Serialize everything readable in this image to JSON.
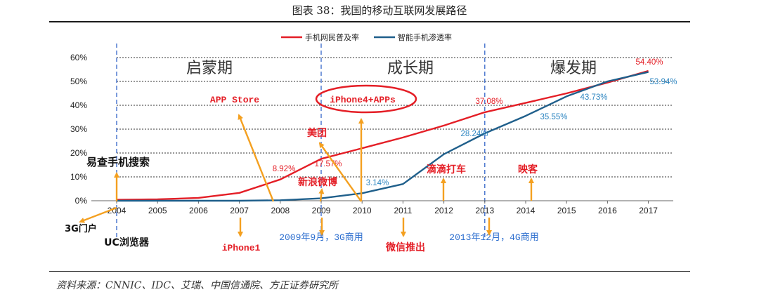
{
  "figure_title": "图表 38：我国的移动互联网发展路径",
  "source": "资料来源：CNNIC、IDC、艾瑞、中国信通院、方正证券研究所",
  "chart_data": {
    "type": "line",
    "title": "",
    "xlabel": "",
    "ylabel": "",
    "x": [
      "2004",
      "2005",
      "2006",
      "2007",
      "2008",
      "2009",
      "2010",
      "2011",
      "2012",
      "2013",
      "2014",
      "2015",
      "2016",
      "2017"
    ],
    "ylim": [
      0,
      60
    ],
    "yticks": [
      "0%",
      "10%",
      "20%",
      "30%",
      "40%",
      "50%",
      "60%"
    ],
    "grid": "horizontal-dashed",
    "legend_position": "top",
    "series": [
      {
        "name": "手机网民普及率",
        "color": "#e41e26",
        "values": [
          0.4,
          0.6,
          1.2,
          3.3,
          8.92,
          17.57,
          22.0,
          26.5,
          31.5,
          37.08,
          41.0,
          45.0,
          49.5,
          54.4
        ]
      },
      {
        "name": "智能手机渗透率",
        "color": "#1f5f8b",
        "values": [
          0,
          0,
          0,
          0,
          0.2,
          1.0,
          3.14,
          7.0,
          19.5,
          28.24,
          35.55,
          43.73,
          50.0,
          53.94
        ]
      }
    ],
    "data_labels": [
      {
        "text": "8.92%",
        "color": "#e41e26",
        "x": "2008",
        "y": 8.92
      },
      {
        "text": "17.57%",
        "color": "#e41e26",
        "x": "2009",
        "y": 17.57
      },
      {
        "text": "37.08%",
        "color": "#e41e26",
        "x": "2013",
        "y": 37.08
      },
      {
        "text": "54.40%",
        "color": "#e41e26",
        "x": "2017",
        "y": 54.4
      },
      {
        "text": "3.14%",
        "color": "#2e86c1",
        "x": "2010",
        "y": 3.14
      },
      {
        "text": "28.24%",
        "color": "#2e86c1",
        "x": "2013",
        "y": 28.24
      },
      {
        "text": "35.55%",
        "color": "#2e86c1",
        "x": "2014",
        "y": 35.55
      },
      {
        "text": "43.73%",
        "color": "#2e86c1",
        "x": "2015",
        "y": 43.73
      },
      {
        "text": "53.94%",
        "color": "#2e86c1",
        "x": "2017",
        "y": 53.94
      }
    ],
    "phases": [
      {
        "label": "启蒙期",
        "from": "2004",
        "to": "2009"
      },
      {
        "label": "成长期",
        "from": "2009",
        "to": "2013"
      },
      {
        "label": "爆发期",
        "from": "2013",
        "to": "2017"
      }
    ],
    "phase_dividers": [
      "2004",
      "2009",
      "2013"
    ],
    "events": [
      {
        "text": "APP Store",
        "color": "#e41e26"
      },
      {
        "text": "iPhone4+APPs",
        "color": "#e41e26",
        "circled": true
      },
      {
        "text": "美团",
        "color": "#e41e26"
      },
      {
        "text": "易查手机搜索",
        "color": "#111111"
      },
      {
        "text": "新浪微博",
        "color": "#e41e26"
      },
      {
        "text": "滴滴打车",
        "color": "#e41e26"
      },
      {
        "text": "映客",
        "color": "#e41e26"
      },
      {
        "text": "3G门户",
        "color": "#111111"
      },
      {
        "text": "UC浏览器",
        "color": "#111111"
      },
      {
        "text": "iPhone1",
        "color": "#e41e26"
      },
      {
        "text": "2009年9月，3G商用",
        "color": "#2e6fcf"
      },
      {
        "text": "微信推出",
        "color": "#e41e26"
      },
      {
        "text": "2013年12月，4G商用",
        "color": "#2e6fcf"
      }
    ],
    "arrow_color": "#f4a020"
  }
}
